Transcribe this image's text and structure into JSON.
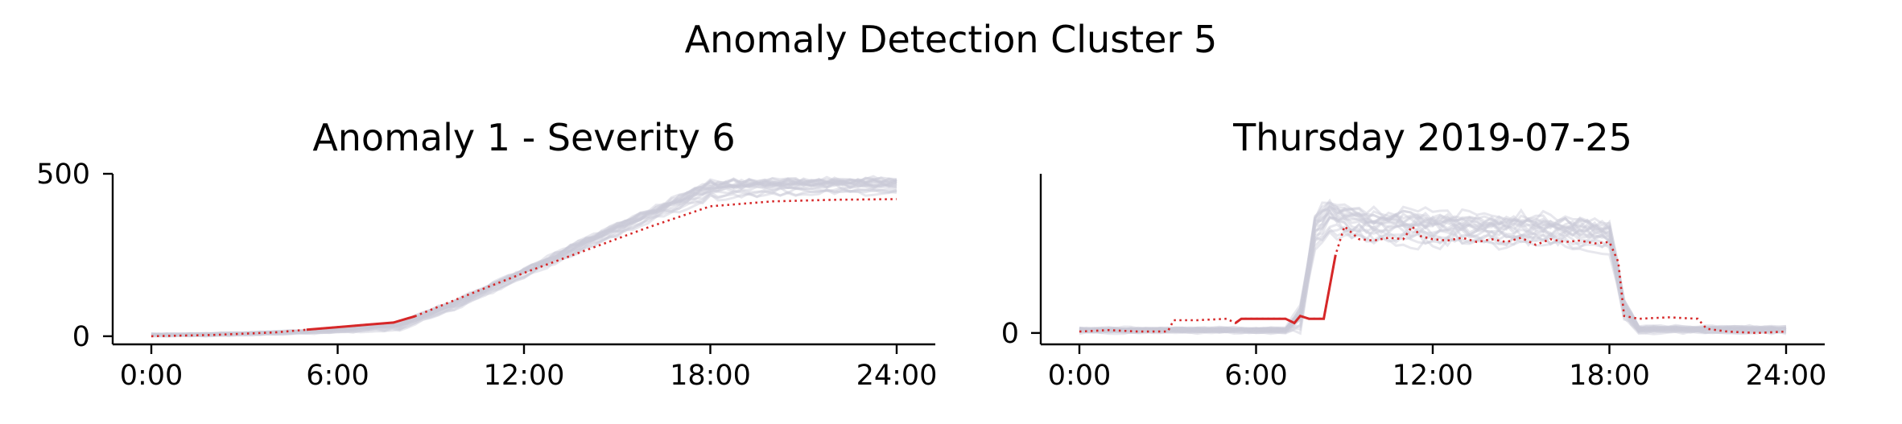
{
  "figure": {
    "suptitle": "Anomaly Detection Cluster 5",
    "colors": {
      "background_lines": "#c9cad8",
      "anomaly": "#d62728",
      "axis": "#000000"
    }
  },
  "chart_data": [
    {
      "type": "line",
      "title": "Anomaly 1 - Severity 6",
      "xlabel": "",
      "ylabel": "",
      "x_ticks": [
        "0:00",
        "6:00",
        "12:00",
        "18:00",
        "24:00"
      ],
      "y_ticks": [
        "0",
        "500"
      ],
      "xlim": [
        0,
        24
      ],
      "ylim": [
        -25,
        500
      ],
      "grid": false,
      "legend": "none",
      "background_series": {
        "count": 20,
        "x": [
          0,
          2,
          4,
          6,
          8,
          10,
          12,
          14,
          16,
          18,
          20,
          22,
          24
        ],
        "band_low": [
          0,
          0,
          5,
          10,
          18,
          90,
          180,
          265,
          350,
          420,
          435,
          436,
          436
        ],
        "band_high": [
          8,
          10,
          15,
          25,
          45,
          120,
          210,
          305,
          390,
          480,
          485,
          488,
          488
        ],
        "color": "#c9cad8"
      },
      "anomaly_series": {
        "x": [
          0,
          2,
          4,
          5,
          6,
          7,
          7.8,
          8.5,
          10,
          12,
          14,
          16,
          18,
          20,
          22,
          24
        ],
        "y": [
          0,
          4,
          12,
          20,
          28,
          36,
          42,
          62,
          120,
          195,
          265,
          335,
          400,
          415,
          420,
          422
        ],
        "solid_range": [
          5,
          8.5
        ],
        "color": "#d62728"
      }
    },
    {
      "type": "line",
      "title": "Thursday 2019-07-25",
      "xlabel": "",
      "ylabel": "",
      "x_ticks": [
        "0:00",
        "6:00",
        "12:00",
        "18:00",
        "24:00"
      ],
      "y_ticks": [
        "0"
      ],
      "xlim": [
        0,
        24
      ],
      "ylim": [
        -8,
        112
      ],
      "grid": false,
      "legend": "none",
      "background_series": {
        "count": 20,
        "x": [
          0,
          3,
          6,
          7,
          7.5,
          8,
          8.5,
          9,
          10,
          11,
          12,
          13,
          14,
          15,
          16,
          17,
          18,
          18.5,
          19,
          21,
          24
        ],
        "band_low": [
          0,
          0,
          0,
          0,
          2,
          60,
          70,
          66,
          64,
          63,
          62,
          62,
          61,
          61,
          61,
          60,
          58,
          10,
          0,
          0,
          0
        ],
        "band_high": [
          4,
          4,
          4,
          4,
          20,
          85,
          96,
          92,
          88,
          87,
          86,
          85,
          85,
          84,
          84,
          83,
          80,
          25,
          5,
          5,
          5
        ],
        "color": "#c9cad8"
      },
      "anomaly_series": {
        "x": [
          0,
          1,
          2,
          3,
          3.2,
          4,
          5,
          5.3,
          5.5,
          5.7,
          6,
          7,
          7.3,
          7.5,
          7.8,
          8.3,
          8.7,
          9,
          9.5,
          10,
          10.5,
          11,
          11.3,
          11.6,
          12,
          12.5,
          13,
          13.5,
          14,
          14.5,
          15,
          15.5,
          16,
          16.5,
          17,
          17.5,
          18,
          18.3,
          18.5,
          19,
          20,
          21,
          21.3,
          22,
          23,
          24
        ],
        "y": [
          1,
          2,
          1,
          1,
          9,
          9,
          10,
          7,
          10,
          10,
          10,
          10,
          7,
          12,
          10,
          10,
          55,
          75,
          66,
          65,
          67,
          66,
          75,
          68,
          66,
          65,
          67,
          64,
          66,
          64,
          67,
          62,
          66,
          64,
          65,
          63,
          64,
          50,
          12,
          10,
          11,
          10,
          3,
          1,
          0,
          1
        ],
        "solid_range": [
          5.3,
          8.7
        ],
        "color": "#d62728"
      }
    }
  ]
}
